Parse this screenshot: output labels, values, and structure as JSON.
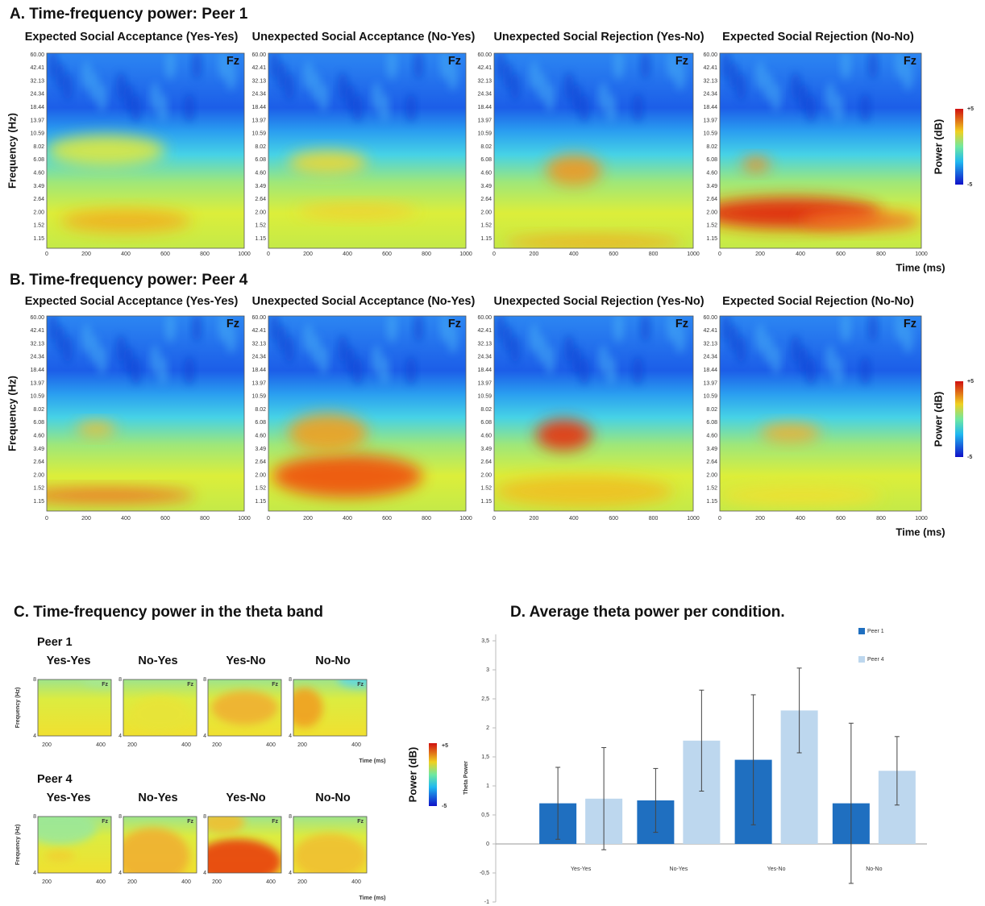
{
  "heatmap": {
    "freq_ticks": [
      "60.00",
      "42.41",
      "32.13",
      "24.34",
      "18.44",
      "13.97",
      "10.59",
      "8.02",
      "6.08",
      "4.60",
      "3.49",
      "2.64",
      "2.00",
      "1.52",
      "1.15"
    ],
    "time_ticks": [
      0,
      200,
      400,
      600,
      800,
      1000
    ],
    "marker": "Fz",
    "y_label": "Frequency (Hz)",
    "x_label": "Time (ms)",
    "colorbar": {
      "label": "Power (dB)",
      "max": "+5",
      "min": "-5"
    }
  },
  "panel_a": {
    "title": "A. Time-frequency power: Peer 1",
    "conditions": [
      "Expected Social Acceptance (Yes-Yes)",
      "Unexpected Social Acceptance (No-Yes)",
      "Unexpected Social Rejection (Yes-No)",
      "Expected Social Rejection (No-No)"
    ]
  },
  "panel_b": {
    "title": "B. Time-frequency power: Peer 4",
    "conditions": [
      "Expected Social Acceptance (Yes-Yes)",
      "Unexpected Social Acceptance (No-Yes)",
      "Unexpected Social Rejection (Yes-No)",
      "Expected Social Rejection (No-No)"
    ]
  },
  "panel_c": {
    "title": "C. Time-frequency power in the theta band",
    "freq_ticks": [
      8,
      4
    ],
    "time_ticks": [
      200,
      400
    ],
    "groups": [
      {
        "name": "Peer 1",
        "conditions": [
          "Yes-Yes",
          "No-Yes",
          "Yes-No",
          "No-No"
        ]
      },
      {
        "name": "Peer 4",
        "conditions": [
          "Yes-Yes",
          "No-Yes",
          "Yes-No",
          "No-No"
        ]
      }
    ]
  },
  "chart_data": {
    "type": "bar",
    "title": "D. Average theta power per condition.",
    "y_label": "Theta Power",
    "categories": [
      "Yes-Yes",
      "No-Yes",
      "Yes-No",
      "No-No"
    ],
    "series": [
      {
        "name": "Peer 1",
        "color": "#1f6fc0",
        "values": [
          0.7,
          0.75,
          1.45,
          0.7
        ],
        "errors": [
          0.62,
          0.55,
          1.12,
          1.38
        ]
      },
      {
        "name": "Peer 4",
        "color": "#bdd7ee",
        "values": [
          0.78,
          1.78,
          2.3,
          1.26
        ],
        "errors": [
          0.88,
          0.87,
          0.73,
          0.59
        ]
      }
    ],
    "ylim": [
      -1,
      3.5
    ],
    "yticks": [
      -1,
      {
        "value": -0.5,
        "label": "-0,5"
      },
      0,
      {
        "value": 0.5,
        "label": "0,5"
      },
      1,
      {
        "value": 1.5,
        "label": "1,5"
      },
      2,
      {
        "value": 2.5,
        "label": "2,5"
      },
      3,
      {
        "value": 3.5,
        "label": "3,5"
      }
    ],
    "legend": "top-right"
  }
}
